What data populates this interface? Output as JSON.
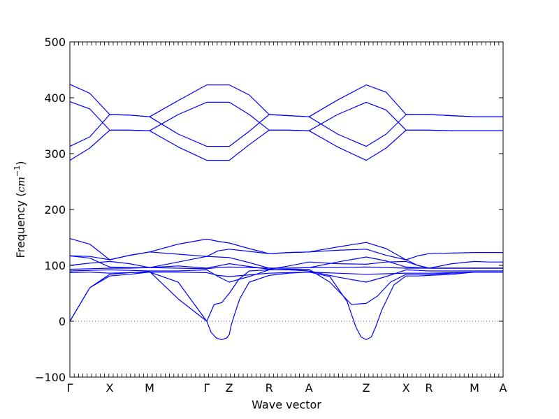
{
  "chart_data": {
    "type": "line",
    "title": "",
    "xlabel": "Wave vector",
    "ylabel_text": "Frequency (",
    "ylabel_unit": "cm",
    "ylabel_exp": "−1",
    "ylabel_close": ")",
    "ylim": [
      -100,
      500
    ],
    "yticks": [
      -100,
      0,
      100,
      200,
      300,
      400,
      500
    ],
    "xlim": [
      0,
      1
    ],
    "high_symmetry_points": [
      {
        "label": "Γ",
        "x": 0.0
      },
      {
        "label": "X",
        "x": 0.092
      },
      {
        "label": "M",
        "x": 0.184
      },
      {
        "label": "Γ",
        "x": 0.316
      },
      {
        "label": "Z",
        "x": 0.368
      },
      {
        "label": "R",
        "x": 0.46
      },
      {
        "label": "A",
        "x": 0.552
      },
      {
        "label": "Z",
        "x": 0.684
      },
      {
        "label": "X",
        "x": 0.776
      },
      {
        "label": "R",
        "x": 0.829
      },
      {
        "label": "M",
        "x": 0.934
      },
      {
        "label": "A",
        "x": 1.0
      }
    ],
    "zero_line": {
      "y": 0,
      "style": "dotted"
    },
    "line_color": "#0000ff",
    "series": [
      {
        "x": [
          0,
          0.046,
          0.092,
          0.138,
          0.184,
          0.25,
          0.316,
          0.342,
          0.368,
          0.414,
          0.46,
          0.506,
          0.552,
          0.618,
          0.684,
          0.73,
          0.776,
          0.803,
          0.829,
          0.882,
          0.934,
          0.967,
          1.0
        ],
        "values": [
          424,
          408,
          370,
          369,
          366,
          395,
          423,
          423,
          423,
          405,
          370,
          368,
          366,
          396,
          423,
          410,
          370,
          370,
          370,
          368,
          366,
          366,
          366
        ]
      },
      {
        "x": [
          0,
          0.046,
          0.092,
          0.138,
          0.184,
          0.25,
          0.316,
          0.342,
          0.368,
          0.414,
          0.46,
          0.506,
          0.552,
          0.618,
          0.684,
          0.73,
          0.776,
          0.803,
          0.829,
          0.882,
          0.934,
          0.967,
          1.0
        ],
        "values": [
          393,
          380,
          342,
          342,
          341,
          370,
          392,
          392,
          392,
          370,
          342,
          342,
          341,
          370,
          392,
          378,
          342,
          342,
          342,
          341,
          341,
          341,
          341
        ]
      },
      {
        "x": [
          0,
          0.046,
          0.092,
          0.138,
          0.184,
          0.25,
          0.316,
          0.342,
          0.368,
          0.414,
          0.46,
          0.506,
          0.552,
          0.618,
          0.684,
          0.73,
          0.776,
          0.803,
          0.829,
          0.882,
          0.934,
          0.967,
          1.0
        ],
        "values": [
          313,
          330,
          370,
          369,
          366,
          335,
          313,
          313,
          313,
          340,
          370,
          368,
          366,
          335,
          313,
          335,
          370,
          370,
          370,
          368,
          366,
          366,
          366
        ]
      },
      {
        "x": [
          0,
          0.046,
          0.092,
          0.138,
          0.184,
          0.25,
          0.316,
          0.342,
          0.368,
          0.414,
          0.46,
          0.506,
          0.552,
          0.618,
          0.684,
          0.73,
          0.776,
          0.803,
          0.829,
          0.882,
          0.934,
          0.967,
          1.0
        ],
        "values": [
          288,
          310,
          342,
          342,
          341,
          312,
          288,
          288,
          288,
          316,
          342,
          342,
          341,
          312,
          288,
          310,
          342,
          342,
          342,
          341,
          341,
          341,
          341
        ]
      },
      {
        "x": [
          0,
          0.046,
          0.092,
          0.138,
          0.184,
          0.25,
          0.316,
          0.342,
          0.368,
          0.414,
          0.46,
          0.506,
          0.552,
          0.618,
          0.684,
          0.73,
          0.776,
          0.803,
          0.829,
          0.882,
          0.934,
          0.967,
          1.0
        ],
        "values": [
          148,
          138,
          110,
          118,
          124,
          138,
          147,
          143,
          140,
          130,
          121,
          123,
          124,
          133,
          141,
          130,
          110,
          117,
          121,
          122,
          123,
          123,
          123
        ]
      },
      {
        "x": [
          0,
          0.046,
          0.092,
          0.138,
          0.184,
          0.25,
          0.316,
          0.342,
          0.368,
          0.414,
          0.46,
          0.506,
          0.552,
          0.618,
          0.684,
          0.73,
          0.776,
          0.803,
          0.829,
          0.882,
          0.934,
          0.967,
          1.0
        ],
        "values": [
          117,
          116,
          110,
          118,
          124,
          120,
          116,
          126,
          129,
          125,
          121,
          123,
          124,
          127,
          129,
          118,
          110,
          100,
          95,
          103,
          107,
          106,
          106
        ]
      },
      {
        "x": [
          0,
          0.046,
          0.092,
          0.138,
          0.184,
          0.25,
          0.316,
          0.342,
          0.368,
          0.414,
          0.46,
          0.506,
          0.552,
          0.618,
          0.684,
          0.73,
          0.776,
          0.803,
          0.829,
          0.882,
          0.934,
          0.967,
          1.0
        ],
        "values": [
          117,
          113,
          97,
          96,
          96,
          106,
          116,
          115,
          114,
          105,
          95,
          95,
          96,
          106,
          115,
          108,
          97,
          96,
          95,
          95,
          95,
          95,
          95
        ]
      },
      {
        "x": [
          0,
          0.046,
          0.092,
          0.138,
          0.184,
          0.25,
          0.316,
          0.342,
          0.368,
          0.414,
          0.46,
          0.506,
          0.552,
          0.618,
          0.684,
          0.73,
          0.776,
          0.803,
          0.829,
          0.882,
          0.934,
          0.967,
          1.0
        ],
        "values": [
          100,
          104,
          107,
          103,
          96,
          99,
          95,
          99,
          103,
          98,
          93,
          99,
          106,
          103,
          102,
          106,
          107,
          100,
          95,
          95,
          95,
          95,
          95
        ]
      },
      {
        "x": [
          0,
          0.046,
          0.092,
          0.138,
          0.184,
          0.25,
          0.316,
          0.342,
          0.368,
          0.414,
          0.46,
          0.506,
          0.552,
          0.618,
          0.684,
          0.73,
          0.776,
          0.803,
          0.829,
          0.882,
          0.934,
          0.967,
          1.0
        ],
        "values": [
          93,
          94,
          95,
          95,
          96,
          95,
          94,
          96,
          97,
          96,
          95,
          95,
          96,
          96,
          97,
          96,
          95,
          95,
          95,
          95,
          95,
          95,
          95
        ]
      },
      {
        "x": [
          0,
          0.046,
          0.092,
          0.138,
          0.184,
          0.25,
          0.316,
          0.342,
          0.368,
          0.414,
          0.46,
          0.506,
          0.552,
          0.618,
          0.684,
          0.73,
          0.776,
          0.803,
          0.829,
          0.882,
          0.934,
          0.967,
          1.0
        ],
        "values": [
          90,
          91,
          92,
          91,
          90,
          90,
          92,
          80,
          70,
          80,
          92,
          92,
          90,
          79,
          70,
          80,
          92,
          91,
          90,
          90,
          90,
          90,
          90
        ]
      },
      {
        "x": [
          0,
          0.046,
          0.092,
          0.138,
          0.184,
          0.25,
          0.316,
          0.342,
          0.368,
          0.414,
          0.46,
          0.506,
          0.552,
          0.618,
          0.684,
          0.73,
          0.776,
          0.803,
          0.829,
          0.882,
          0.934,
          0.967,
          1.0
        ],
        "values": [
          87,
          88,
          86,
          87,
          88,
          88,
          87,
          82,
          80,
          83,
          86,
          87,
          88,
          86,
          84,
          85,
          86,
          86,
          86,
          87,
          88,
          88,
          88
        ]
      },
      {
        "x": [
          0,
          0.046,
          0.092,
          0.138,
          0.184,
          0.25,
          0.316,
          0.333,
          0.35,
          0.368,
          0.39,
          0.414,
          0.46,
          0.506,
          0.552,
          0.6,
          0.65,
          0.684,
          0.71,
          0.74,
          0.776,
          0.803,
          0.829,
          0.882,
          0.934,
          0.967,
          1.0
        ],
        "values": [
          0,
          60,
          84,
          87,
          89,
          40,
          0,
          30,
          33,
          50,
          75,
          90,
          92,
          93,
          93,
          70,
          30,
          32,
          45,
          70,
          84,
          84,
          84,
          86,
          88,
          88,
          88
        ]
      },
      {
        "x": [
          0,
          0.046,
          0.092,
          0.138,
          0.184,
          0.25,
          0.316,
          0.326,
          0.338,
          0.35,
          0.362,
          0.368,
          0.372,
          0.38,
          0.392,
          0.414,
          0.46,
          0.506,
          0.552,
          0.6,
          0.64,
          0.66,
          0.672,
          0.684,
          0.696,
          0.706,
          0.72,
          0.748,
          0.776,
          0.803,
          0.829,
          0.882,
          0.934,
          0.967,
          1.0
        ],
        "values": [
          0,
          60,
          81,
          84,
          88,
          70,
          0,
          -20,
          -30,
          -33,
          -30,
          -24,
          -8,
          12,
          40,
          70,
          82,
          86,
          88,
          80,
          35,
          -10,
          -28,
          -33,
          -28,
          -10,
          20,
          65,
          81,
          81,
          82,
          84,
          88,
          88,
          88
        ]
      }
    ]
  }
}
